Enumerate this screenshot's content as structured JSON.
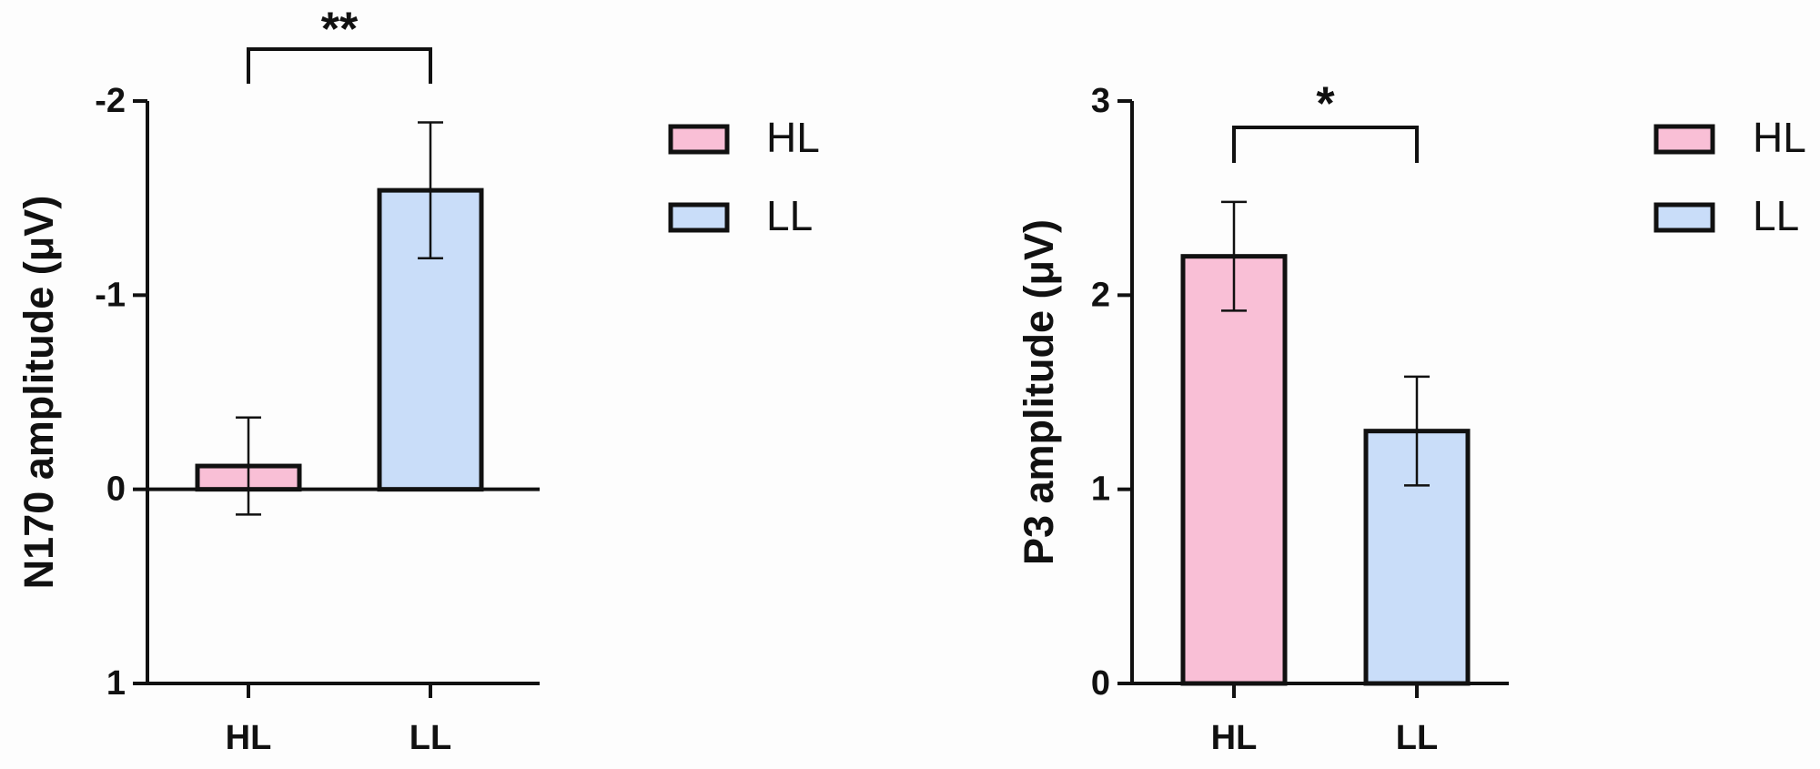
{
  "chart_data": [
    {
      "type": "bar",
      "y_label": "N170 amplitude (μV)",
      "categories": [
        "HL",
        "LL"
      ],
      "values": [
        -0.12,
        -1.54
      ],
      "errors": [
        0.25,
        0.35
      ],
      "colors": [
        "#f9bfd6",
        "#c9ddf9"
      ],
      "ylim": [
        1,
        -2
      ],
      "yticks": [
        -2,
        -1,
        0,
        1
      ],
      "legend": [
        "HL",
        "LL"
      ],
      "annotations": [
        "**"
      ]
    },
    {
      "type": "bar",
      "y_label": "P3 amplitude (μV)",
      "categories": [
        "HL",
        "LL"
      ],
      "values": [
        2.2,
        1.3
      ],
      "errors": [
        0.28,
        0.28
      ],
      "colors": [
        "#f9bfd6",
        "#c9ddf9"
      ],
      "ylim": [
        0,
        3
      ],
      "yticks": [
        0,
        1,
        2,
        3
      ],
      "legend": [
        "HL",
        "LL"
      ],
      "annotations": [
        "*"
      ]
    }
  ]
}
